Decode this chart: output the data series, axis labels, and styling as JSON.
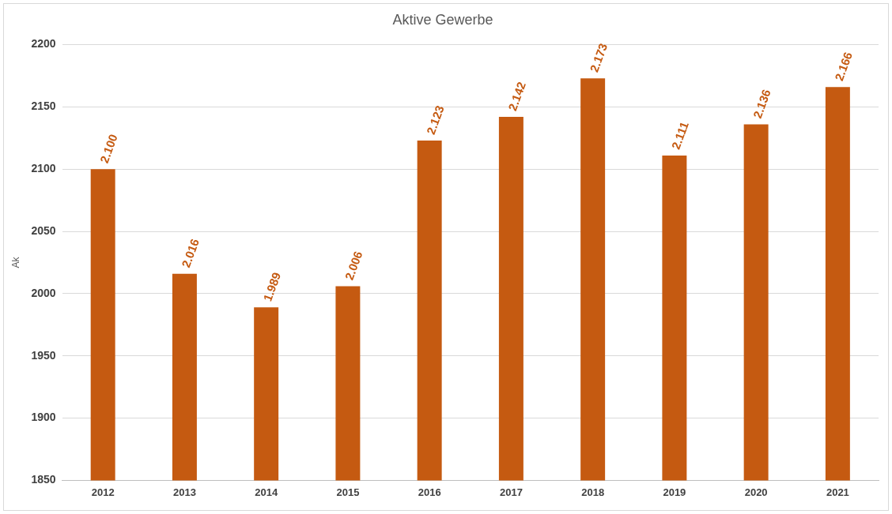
{
  "chart_data": {
    "type": "bar",
    "title": "Aktive Gewerbe",
    "ylabel": "Ak",
    "categories": [
      "2012",
      "2013",
      "2014",
      "2015",
      "2016",
      "2017",
      "2018",
      "2019",
      "2020",
      "2021"
    ],
    "values": [
      2100,
      2016,
      1989,
      2006,
      2123,
      2142,
      2173,
      2111,
      2136,
      2166
    ],
    "value_labels": [
      "2.100",
      "2.016",
      "1.989",
      "2.006",
      "2.123",
      "2.142",
      "2.173",
      "2.111",
      "2.136",
      "2.166"
    ],
    "color": "#c55a11",
    "ylim": [
      1850,
      2200
    ],
    "yticks": [
      1850,
      1900,
      1950,
      2000,
      2050,
      2100,
      2150,
      2200
    ],
    "grid": "y"
  }
}
